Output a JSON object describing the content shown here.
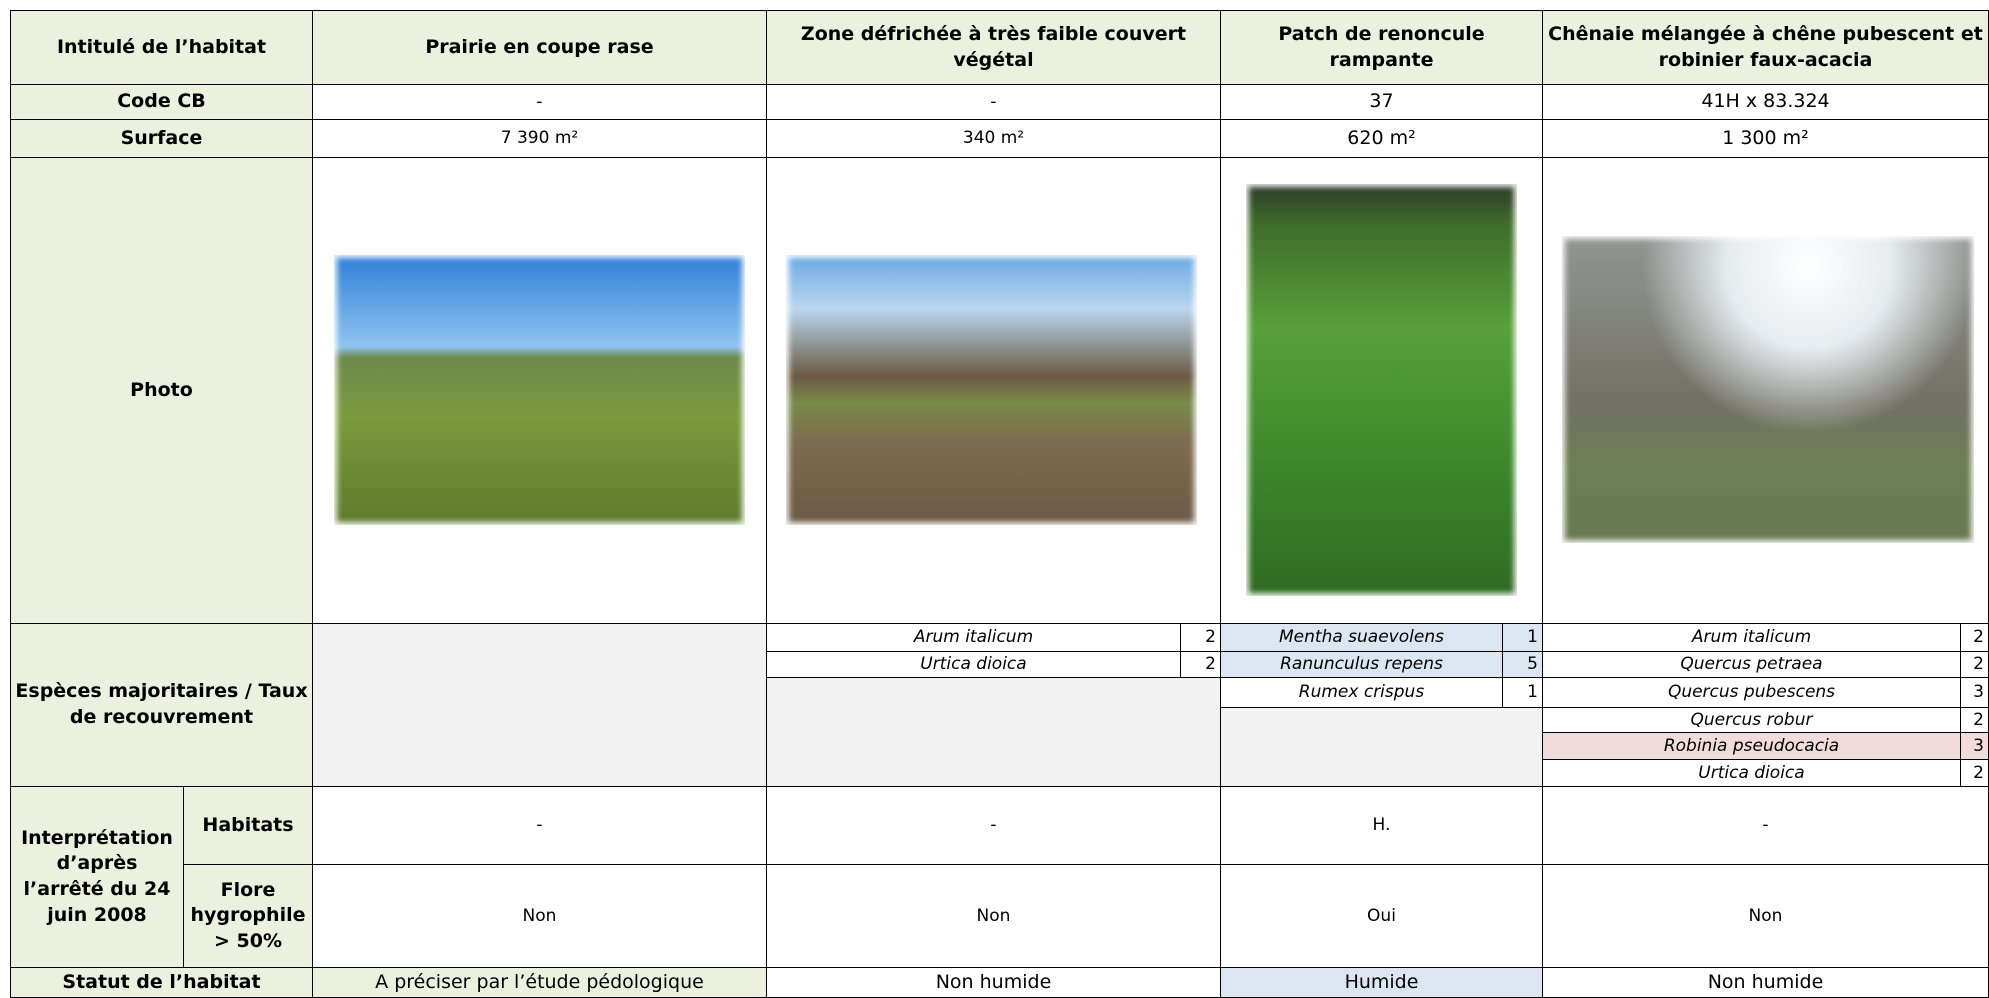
{
  "header": [
    "Intitulé de l’habitat",
    "Prairie en coupe rase",
    "Zone défrichée à très faible couvert végétal",
    "Patch de renoncule rampante",
    "Chênaie mélangée à chêne pubescent et robinier faux-acacia"
  ],
  "code_cb": {
    "label": "Code CB",
    "values": [
      "-",
      "-",
      "37",
      "41H x 83.324"
    ]
  },
  "surface": {
    "label": "Surface",
    "values": [
      "7 390 m²",
      "340 m²",
      "620 m²",
      "1 300 m²"
    ]
  },
  "photo": {
    "label": "Photo"
  },
  "species": {
    "label": "Espèces majoritaires / Taux de recouvrement",
    "columns": [
      [],
      [
        {
          "name": "Arum italicum",
          "cover": 2
        },
        {
          "name": "Urtica dioica",
          "cover": 2
        }
      ],
      [
        {
          "name": "Mentha suaevolens",
          "cover": 1,
          "color": "#dce6f1"
        },
        {
          "name": "Ranunculus repens",
          "cover": 5,
          "color": "#dce6f1"
        },
        {
          "name": "Rumex crispus",
          "cover": 1
        }
      ],
      [
        {
          "name": "Arum italicum",
          "cover": 2
        },
        {
          "name": "Quercus petraea",
          "cover": 2
        },
        {
          "name": "Quercus pubescens",
          "cover": 3
        },
        {
          "name": "Quercus robur",
          "cover": 2
        },
        {
          "name": "Robinia pseudocacia",
          "cover": 3,
          "color": "#f2dcdb"
        },
        {
          "name": "Urtica dioica",
          "cover": 2
        }
      ]
    ]
  },
  "interpretation": {
    "label": "Interprétation d’après l’arrêté du 24 juin 2008",
    "habitats": {
      "label": "Habitats",
      "values": [
        "-",
        "-",
        "H.",
        "-"
      ]
    },
    "flore": {
      "label": "Flore hygrophile > 50%",
      "values": [
        "Non",
        "Non",
        "Oui",
        "Non"
      ]
    }
  },
  "statut": {
    "label": "Statut de l’habitat",
    "values": [
      "A préciser par l’étude pédologique",
      "Non humide",
      "Humide",
      "Non humide"
    ],
    "colors": [
      "#ebf1de",
      "#ffffff",
      "#dce6f1",
      "#ffffff"
    ]
  }
}
